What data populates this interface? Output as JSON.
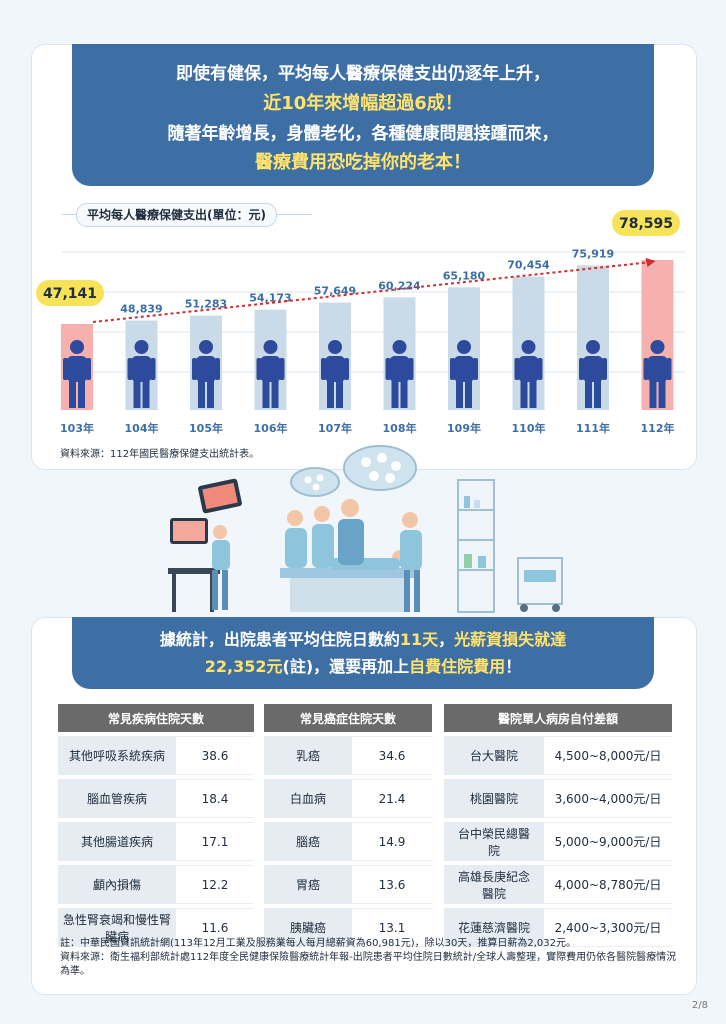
{
  "banner1": {
    "line1": "即使有健保，平均每人醫療保健支出仍逐年上升，",
    "line2": "近10年來增幅超過6成！",
    "line3": "隨著年齡增長，身體老化，各種健康問題接踵而來，",
    "line4": "醫療費用恐吃掉你的老本！"
  },
  "chart_data": {
    "type": "bar",
    "title": "平均每人醫療保健支出(單位：元)",
    "categories": [
      "103年",
      "104年",
      "105年",
      "106年",
      "107年",
      "108年",
      "109年",
      "110年",
      "111年",
      "112年"
    ],
    "values": [
      47141,
      48839,
      51283,
      54173,
      57649,
      60224,
      65180,
      70454,
      75919,
      78595
    ],
    "value_labels": [
      "47,141",
      "48,839",
      "51,283",
      "54,173",
      "57,649",
      "60,224",
      "65,180",
      "70,454",
      "75,919",
      "78,595"
    ],
    "highlight": [
      0,
      9
    ],
    "colors": {
      "bar": "#c9dbe8",
      "highlight": "#f6b0ae",
      "person": "#2e4a9c",
      "callout": "#f7e35a",
      "label": "#3e6fa4"
    }
  },
  "source1": "資料來源：112年國民醫療保健支出統計表。",
  "banner2": {
    "line1_a": "據統計，出院患者平均住院日數約",
    "line1_b": "11天",
    "line1_c": "，",
    "line1_d": "光薪資損失就達",
    "line2_a": "22,352元",
    "line2_b": "(註)，還要再加上",
    "line2_c": "自費住院費用",
    "line2_d": "！"
  },
  "table1": {
    "header": "常見疾病住院天數",
    "rows": [
      {
        "name": "其他呼吸系統疾病",
        "value": "38.6"
      },
      {
        "name": "腦血管疾病",
        "value": "18.4"
      },
      {
        "name": "其他腸道疾病",
        "value": "17.1"
      },
      {
        "name": "顱內損傷",
        "value": "12.2"
      },
      {
        "name": "急性腎衰竭和慢性腎臟病",
        "value": "11.6"
      }
    ]
  },
  "table2": {
    "header": "常見癌症住院天數",
    "rows": [
      {
        "name": "乳癌",
        "value": "34.6"
      },
      {
        "name": "白血病",
        "value": "21.4"
      },
      {
        "name": "腦癌",
        "value": "14.9"
      },
      {
        "name": "胃癌",
        "value": "13.6"
      },
      {
        "name": "胰臟癌",
        "value": "13.1"
      }
    ]
  },
  "table3": {
    "header": "醫院單人病房自付差額",
    "rows": [
      {
        "name": "台大醫院",
        "value": "4,500~8,000元/日"
      },
      {
        "name": "桃園醫院",
        "value": "3,600~4,000元/日"
      },
      {
        "name": "台中榮民總醫院",
        "value": "5,000~9,000元/日"
      },
      {
        "name": "高雄長庚紀念醫院",
        "value": "4,000~8,780元/日"
      },
      {
        "name": "花蓮慈濟醫院",
        "value": "2,400~3,300元/日"
      }
    ]
  },
  "note1": "註：中華民國資訊統計網(113年12月工業及服務業每人每月總薪資為60,981元)，除以30天，推算日薪為2,032元。",
  "note2": "資料來源：衛生福利部統計處112年度全民健康保險醫療統計年報-出院患者平均住院日數統計/全球人壽整理，實際費用仍依各醫院醫療情況為準。",
  "page_num": "2/8"
}
